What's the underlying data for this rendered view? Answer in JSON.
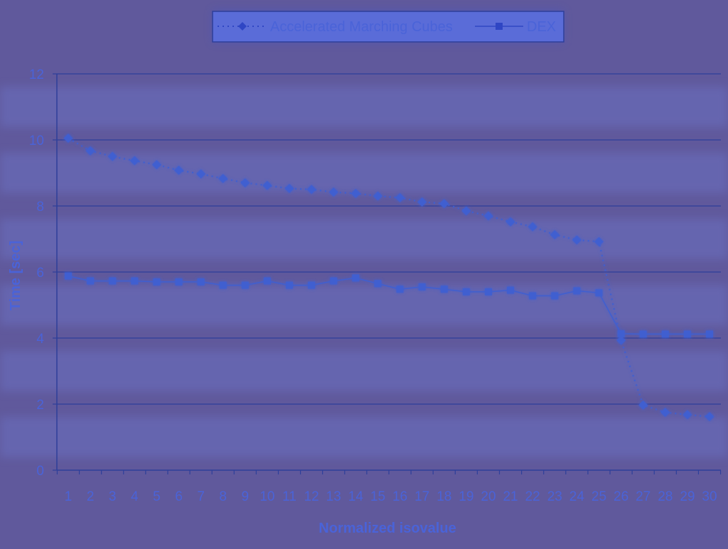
{
  "chart_data": {
    "type": "line",
    "title": "",
    "xlabel": "Normalized isovalue",
    "ylabel": "Time [sec]",
    "ylim": [
      0,
      12
    ],
    "yticks": [
      0,
      2,
      4,
      6,
      8,
      10,
      12
    ],
    "grid": true,
    "legend": "top",
    "categories": [
      "1",
      "2",
      "3",
      "4",
      "5",
      "6",
      "7",
      "8",
      "9",
      "10",
      "11",
      "12",
      "13",
      "14",
      "15",
      "16",
      "17",
      "18",
      "19",
      "20",
      "21",
      "22",
      "23",
      "24",
      "25",
      "26",
      "27",
      "28",
      "29",
      "30"
    ],
    "series": [
      {
        "name": "Accelerated Marching Cubes",
        "marker": "diamond",
        "line_style": "dotted",
        "color": "#3f5fd0",
        "values": [
          10.05,
          9.67,
          9.5,
          9.37,
          9.25,
          9.08,
          8.97,
          8.83,
          8.7,
          8.62,
          8.53,
          8.5,
          8.42,
          8.38,
          8.3,
          8.25,
          8.12,
          8.07,
          7.85,
          7.7,
          7.52,
          7.37,
          7.13,
          6.97,
          6.92,
          3.93,
          1.97,
          1.75,
          1.68,
          1.62
        ]
      },
      {
        "name": "DEX",
        "marker": "square",
        "line_style": "solid",
        "color": "#3f5fd0",
        "values": [
          5.88,
          5.73,
          5.73,
          5.73,
          5.7,
          5.7,
          5.7,
          5.6,
          5.6,
          5.73,
          5.6,
          5.6,
          5.73,
          5.82,
          5.65,
          5.48,
          5.55,
          5.48,
          5.4,
          5.4,
          5.45,
          5.28,
          5.28,
          5.43,
          5.37,
          4.13,
          4.12,
          4.12,
          4.12,
          4.12
        ]
      }
    ]
  },
  "colors": {
    "background": "#60599c",
    "band_light": "#6b6fc0",
    "grid": "#2e3f9a",
    "text": "#4a63d8",
    "series": "#3f5fd0"
  }
}
